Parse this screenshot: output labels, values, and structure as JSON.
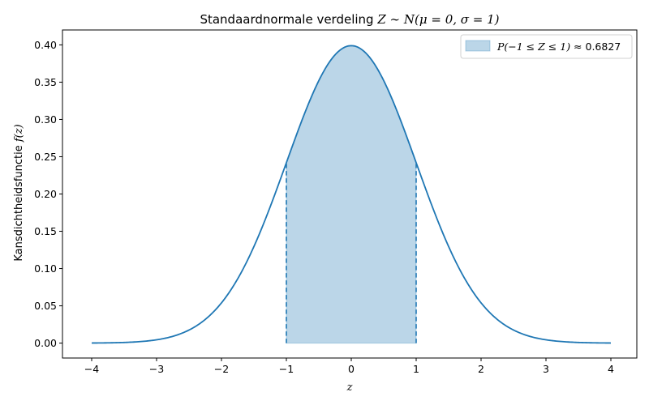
{
  "chart_data": {
    "type": "line",
    "title_main": "Standaardnormale verdeling ",
    "title_math": "Z ∼ N(μ = 0, σ = 1)",
    "xlabel": "z",
    "ylabel_main": "Kansdichtheidsfunctie ",
    "ylabel_math": "f(z)",
    "xlim": [
      -4.45,
      4.4
    ],
    "ylim": [
      -0.02,
      0.42
    ],
    "xticks": [
      -4,
      -3,
      -2,
      -1,
      0,
      1,
      2,
      3,
      4
    ],
    "xtick_labels": [
      "−4",
      "−3",
      "−2",
      "−1",
      "0",
      "1",
      "2",
      "3",
      "4"
    ],
    "yticks": [
      0.0,
      0.05,
      0.1,
      0.15,
      0.2,
      0.25,
      0.3,
      0.35,
      0.4
    ],
    "ytick_labels": [
      "0.00",
      "0.05",
      "0.10",
      "0.15",
      "0.20",
      "0.25",
      "0.30",
      "0.35",
      "0.40"
    ],
    "curve": {
      "distribution": "normal",
      "mu": 0,
      "sigma": 1,
      "x_range": [
        -4,
        4
      ]
    },
    "shaded_region": {
      "from": -1,
      "to": 1,
      "probability": 0.6827
    },
    "boundary_lines": [
      {
        "x": -1,
        "y": 0.242,
        "style": "dashed"
      },
      {
        "x": 1,
        "y": 0.242,
        "style": "dashed"
      }
    ],
    "legend": {
      "position": "upper-right",
      "entry_math": "P(−1 ≤ Z ≤ 1)",
      "entry_approx": " ≈ 0.6827"
    },
    "grid": false,
    "colors": {
      "line": "#1f77b4",
      "fill": "#1f77b4"
    }
  }
}
